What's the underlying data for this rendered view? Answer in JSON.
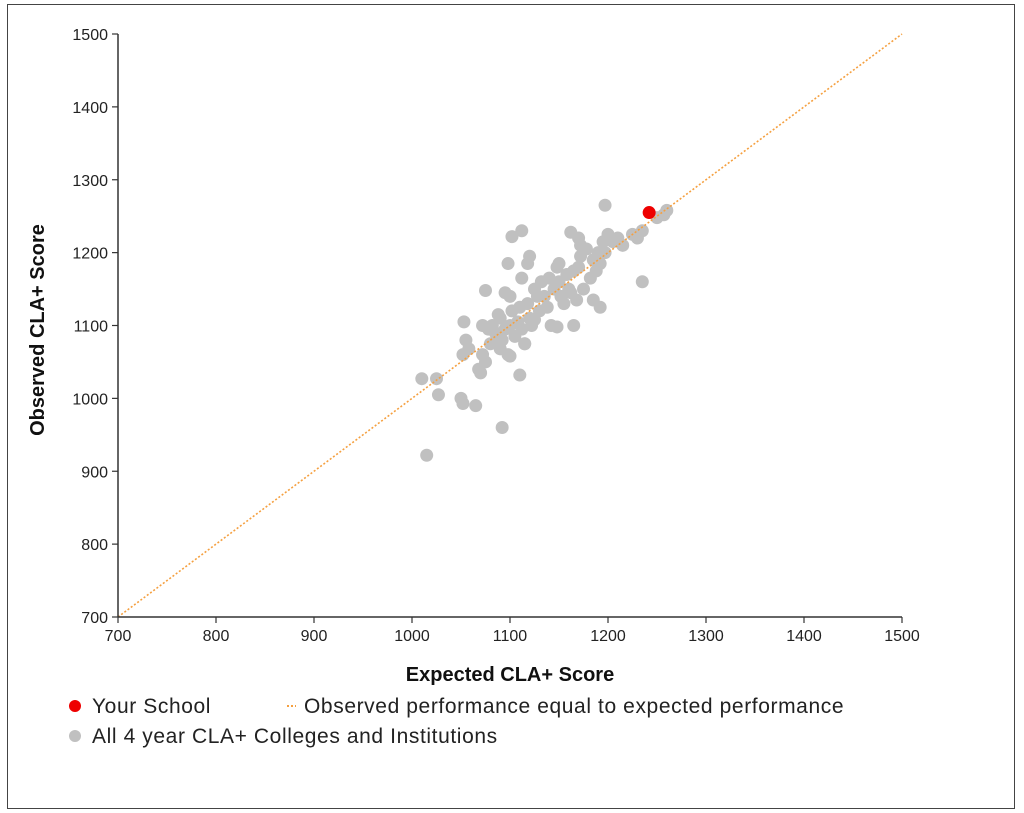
{
  "chart_data": {
    "type": "scatter",
    "xlabel": "Expected CLA+ Score",
    "ylabel": "Observed CLA+ Score",
    "xlim": [
      700,
      1500
    ],
    "ylim": [
      700,
      1500
    ],
    "xticks": [
      "700",
      "800",
      "900",
      "1000",
      "1100",
      "1200",
      "1300",
      "1400",
      "1500"
    ],
    "yticks": [
      "700",
      "800",
      "900",
      "1000",
      "1100",
      "1200",
      "1300",
      "1400",
      "1500"
    ],
    "grid": false,
    "legend_position": "bottom-left",
    "series": [
      {
        "name": "All 4 year CLA+ Colleges and Institutions",
        "color": "#c0c0c0",
        "points": [
          [
            1015,
            922
          ],
          [
            1092,
            960
          ],
          [
            1010,
            1027
          ],
          [
            1025,
            1027
          ],
          [
            1027,
            1005
          ],
          [
            1050,
            1000
          ],
          [
            1052,
            993
          ],
          [
            1065,
            990
          ],
          [
            1053,
            1105
          ],
          [
            1055,
            1080
          ],
          [
            1052,
            1060
          ],
          [
            1058,
            1068
          ],
          [
            1068,
            1040
          ],
          [
            1070,
            1035
          ],
          [
            1072,
            1060
          ],
          [
            1075,
            1050
          ],
          [
            1080,
            1075
          ],
          [
            1072,
            1100
          ],
          [
            1075,
            1148
          ],
          [
            1085,
            1090
          ],
          [
            1088,
            1075
          ],
          [
            1090,
            1110
          ],
          [
            1092,
            1080
          ],
          [
            1095,
            1095
          ],
          [
            1098,
            1060
          ],
          [
            1100,
            1100
          ],
          [
            1102,
            1120
          ],
          [
            1105,
            1085
          ],
          [
            1108,
            1105
          ],
          [
            1110,
            1125
          ],
          [
            1112,
            1095
          ],
          [
            1115,
            1075
          ],
          [
            1118,
            1130
          ],
          [
            1120,
            1110
          ],
          [
            1122,
            1100
          ],
          [
            1125,
            1150
          ],
          [
            1128,
            1140
          ],
          [
            1130,
            1120
          ],
          [
            1132,
            1160
          ],
          [
            1135,
            1140
          ],
          [
            1138,
            1125
          ],
          [
            1140,
            1165
          ],
          [
            1142,
            1100
          ],
          [
            1145,
            1150
          ],
          [
            1148,
            1180
          ],
          [
            1150,
            1160
          ],
          [
            1152,
            1140
          ],
          [
            1155,
            1130
          ],
          [
            1158,
            1170
          ],
          [
            1160,
            1150
          ],
          [
            1162,
            1145
          ],
          [
            1165,
            1175
          ],
          [
            1168,
            1135
          ],
          [
            1170,
            1180
          ],
          [
            1172,
            1195
          ],
          [
            1175,
            1150
          ],
          [
            1178,
            1205
          ],
          [
            1182,
            1165
          ],
          [
            1185,
            1190
          ],
          [
            1188,
            1175
          ],
          [
            1190,
            1200
          ],
          [
            1192,
            1185
          ],
          [
            1195,
            1215
          ],
          [
            1197,
            1200
          ],
          [
            1200,
            1225
          ],
          [
            1205,
            1215
          ],
          [
            1210,
            1220
          ],
          [
            1215,
            1210
          ],
          [
            1225,
            1225
          ],
          [
            1230,
            1220
          ],
          [
            1235,
            1230
          ],
          [
            1250,
            1248
          ],
          [
            1257,
            1252
          ],
          [
            1260,
            1258
          ],
          [
            1197,
            1265
          ],
          [
            1235,
            1160
          ],
          [
            1192,
            1125
          ],
          [
            1185,
            1135
          ],
          [
            1165,
            1100
          ],
          [
            1162,
            1228
          ],
          [
            1170,
            1220
          ],
          [
            1172,
            1210
          ],
          [
            1112,
            1230
          ],
          [
            1102,
            1222
          ],
          [
            1112,
            1165
          ],
          [
            1098,
            1185
          ],
          [
            1118,
            1185
          ],
          [
            1120,
            1195
          ],
          [
            1150,
            1185
          ],
          [
            1148,
            1098
          ],
          [
            1125,
            1108
          ],
          [
            1110,
            1032
          ],
          [
            1115,
            1075
          ],
          [
            1095,
            1145
          ],
          [
            1100,
            1140
          ],
          [
            1088,
            1115
          ],
          [
            1082,
            1100
          ],
          [
            1078,
            1095
          ],
          [
            1090,
            1068
          ],
          [
            1100,
            1058
          ]
        ]
      },
      {
        "name": "Your School",
        "color": "#ee0000",
        "points": [
          [
            1242,
            1255
          ]
        ]
      }
    ],
    "reference_line": {
      "name": "Observed performance equal to expected performance",
      "color": "#f5a040",
      "from": [
        700,
        700
      ],
      "to": [
        1500,
        1500
      ]
    }
  },
  "legend": {
    "your_school": "Your School",
    "equal_line": "Observed performance equal to expected performance",
    "all_schools": "All 4 year CLA+ Colleges and Institutions"
  }
}
